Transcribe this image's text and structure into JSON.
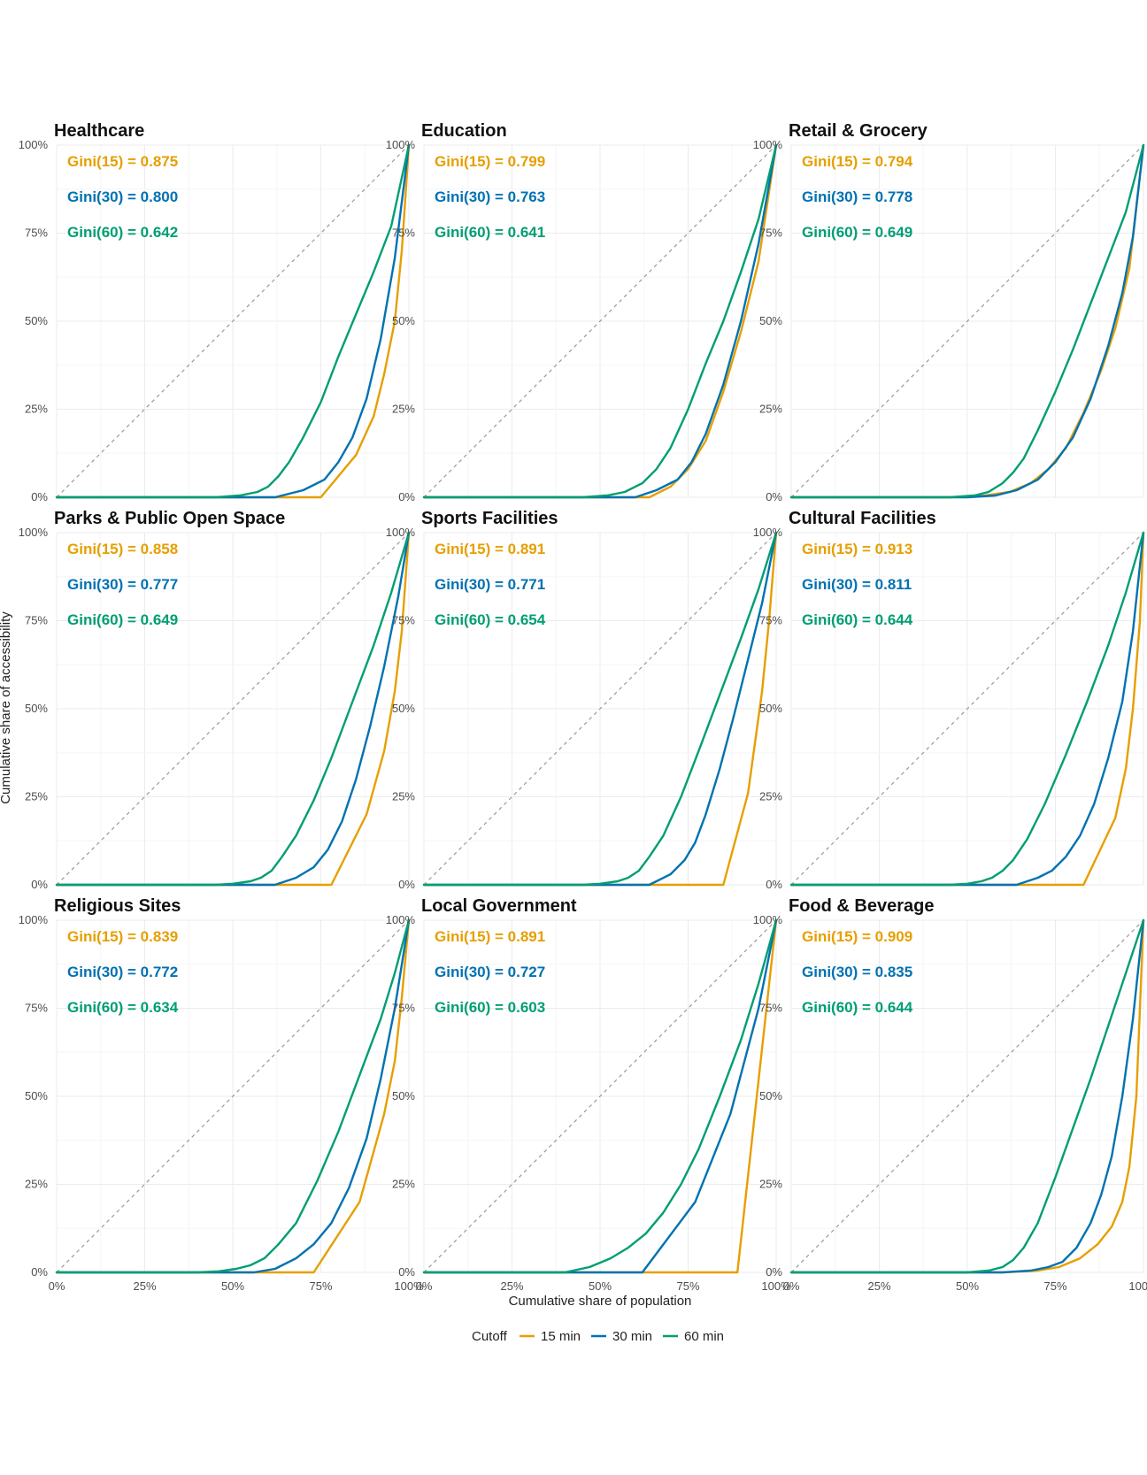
{
  "figure": {
    "xlabel": "Cumulative share of population",
    "ylabel": "Cumulative share of accessibility",
    "legend": {
      "title": "Cutoff",
      "position": "bottom",
      "items": [
        {
          "label": "15 min",
          "color": "#E69F00"
        },
        {
          "label": "30 min",
          "color": "#0072B2"
        },
        {
          "label": "60 min",
          "color": "#009E73"
        }
      ]
    },
    "x_ticks": [
      "0%",
      "25%",
      "50%",
      "75%",
      "100%"
    ],
    "y_ticks": [
      "0%",
      "25%",
      "50%",
      "75%",
      "100%"
    ]
  },
  "chart_data": [
    {
      "type": "line",
      "title": "Healthcare",
      "xlim": [
        0,
        1
      ],
      "ylim": [
        0,
        1
      ],
      "grid": true,
      "reference_line": "equality diagonal (dashed)",
      "gini": [
        "Gini(15) = 0.875",
        "Gini(30) = 0.800",
        "Gini(60) = 0.642"
      ],
      "series": [
        {
          "name": "15 min",
          "color": "#E69F00",
          "x": [
            0,
            0.5,
            0.75,
            0.85,
            0.9,
            0.93,
            0.96,
            0.98,
            1.0
          ],
          "y": [
            0,
            0,
            0,
            0.12,
            0.23,
            0.35,
            0.5,
            0.7,
            1.0
          ]
        },
        {
          "name": "30 min",
          "color": "#0072B2",
          "x": [
            0,
            0.55,
            0.62,
            0.7,
            0.76,
            0.8,
            0.84,
            0.88,
            0.92,
            0.96,
            1.0
          ],
          "y": [
            0,
            0,
            0,
            0.02,
            0.05,
            0.1,
            0.17,
            0.28,
            0.45,
            0.68,
            1.0
          ]
        },
        {
          "name": "60 min",
          "color": "#009E73",
          "x": [
            0,
            0.45,
            0.52,
            0.57,
            0.6,
            0.63,
            0.66,
            0.7,
            0.75,
            0.8,
            0.85,
            0.9,
            0.95,
            1.0
          ],
          "y": [
            0,
            0,
            0.005,
            0.015,
            0.03,
            0.06,
            0.1,
            0.17,
            0.27,
            0.4,
            0.52,
            0.64,
            0.77,
            1.0
          ]
        }
      ]
    },
    {
      "type": "line",
      "title": "Education",
      "xlim": [
        0,
        1
      ],
      "ylim": [
        0,
        1
      ],
      "grid": true,
      "reference_line": "equality diagonal (dashed)",
      "gini": [
        "Gini(15) = 0.799",
        "Gini(30) = 0.763",
        "Gini(60) = 0.641"
      ],
      "series": [
        {
          "name": "15 min",
          "color": "#E69F00",
          "x": [
            0,
            0.5,
            0.64,
            0.7,
            0.75,
            0.8,
            0.85,
            0.9,
            0.95,
            1.0
          ],
          "y": [
            0,
            0,
            0,
            0.03,
            0.08,
            0.16,
            0.3,
            0.47,
            0.67,
            1.0
          ]
        },
        {
          "name": "30 min",
          "color": "#0072B2",
          "x": [
            0,
            0.5,
            0.6,
            0.66,
            0.72,
            0.76,
            0.8,
            0.85,
            0.9,
            0.95,
            1.0
          ],
          "y": [
            0,
            0,
            0,
            0.02,
            0.05,
            0.1,
            0.18,
            0.32,
            0.5,
            0.72,
            1.0
          ]
        },
        {
          "name": "60 min",
          "color": "#009E73",
          "x": [
            0,
            0.45,
            0.52,
            0.57,
            0.62,
            0.66,
            0.7,
            0.75,
            0.8,
            0.85,
            0.9,
            0.95,
            1.0
          ],
          "y": [
            0,
            0,
            0.005,
            0.015,
            0.04,
            0.08,
            0.14,
            0.25,
            0.38,
            0.5,
            0.64,
            0.79,
            1.0
          ]
        }
      ]
    },
    {
      "type": "line",
      "title": "Retail & Grocery",
      "xlim": [
        0,
        1
      ],
      "ylim": [
        0,
        1
      ],
      "grid": true,
      "reference_line": "equality diagonal (dashed)",
      "gini": [
        "Gini(15) = 0.794",
        "Gini(30) = 0.778",
        "Gini(60) = 0.649"
      ],
      "series": [
        {
          "name": "15 min",
          "color": "#E69F00",
          "x": [
            0,
            0.45,
            0.55,
            0.62,
            0.68,
            0.73,
            0.78,
            0.83,
            0.88,
            0.92,
            0.96,
            1.0
          ],
          "y": [
            0,
            0,
            0.005,
            0.015,
            0.04,
            0.08,
            0.14,
            0.24,
            0.36,
            0.48,
            0.65,
            1.0
          ]
        },
        {
          "name": "30 min",
          "color": "#0072B2",
          "x": [
            0,
            0.5,
            0.58,
            0.64,
            0.7,
            0.75,
            0.8,
            0.85,
            0.9,
            0.94,
            0.97,
            1.0
          ],
          "y": [
            0,
            0,
            0.005,
            0.02,
            0.05,
            0.1,
            0.17,
            0.28,
            0.43,
            0.58,
            0.74,
            1.0
          ]
        },
        {
          "name": "60 min",
          "color": "#009E73",
          "x": [
            0,
            0.45,
            0.52,
            0.56,
            0.6,
            0.63,
            0.66,
            0.7,
            0.75,
            0.8,
            0.85,
            0.9,
            0.95,
            1.0
          ],
          "y": [
            0,
            0,
            0.005,
            0.015,
            0.04,
            0.07,
            0.11,
            0.19,
            0.3,
            0.42,
            0.55,
            0.68,
            0.81,
            1.0
          ]
        }
      ]
    },
    {
      "type": "line",
      "title": "Parks & Public Open Space",
      "xlim": [
        0,
        1
      ],
      "ylim": [
        0,
        1
      ],
      "grid": true,
      "reference_line": "equality diagonal (dashed)",
      "gini": [
        "Gini(15) = 0.858",
        "Gini(30) = 0.777",
        "Gini(60) = 0.649"
      ],
      "series": [
        {
          "name": "15 min",
          "color": "#E69F00",
          "x": [
            0,
            0.5,
            0.78,
            0.88,
            0.93,
            0.96,
            0.98,
            1.0
          ],
          "y": [
            0,
            0,
            0,
            0.2,
            0.38,
            0.55,
            0.72,
            1.0
          ]
        },
        {
          "name": "30 min",
          "color": "#0072B2",
          "x": [
            0,
            0.5,
            0.62,
            0.68,
            0.73,
            0.77,
            0.81,
            0.85,
            0.89,
            0.93,
            0.97,
            1.0
          ],
          "y": [
            0,
            0,
            0,
            0.02,
            0.05,
            0.1,
            0.18,
            0.3,
            0.45,
            0.62,
            0.82,
            1.0
          ]
        },
        {
          "name": "60 min",
          "color": "#009E73",
          "x": [
            0,
            0.45,
            0.5,
            0.55,
            0.58,
            0.61,
            0.64,
            0.68,
            0.73,
            0.78,
            0.84,
            0.9,
            0.95,
            1.0
          ],
          "y": [
            0,
            0,
            0.003,
            0.01,
            0.02,
            0.04,
            0.08,
            0.14,
            0.24,
            0.36,
            0.52,
            0.68,
            0.83,
            1.0
          ]
        }
      ]
    },
    {
      "type": "line",
      "title": "Sports Facilities",
      "xlim": [
        0,
        1
      ],
      "ylim": [
        0,
        1
      ],
      "grid": true,
      "reference_line": "equality diagonal (dashed)",
      "gini": [
        "Gini(15) = 0.891",
        "Gini(30) = 0.771",
        "Gini(60) = 0.654"
      ],
      "series": [
        {
          "name": "15 min",
          "color": "#E69F00",
          "x": [
            0,
            0.5,
            0.85,
            0.92,
            0.96,
            0.98,
            1.0
          ],
          "y": [
            0,
            0,
            0,
            0.26,
            0.55,
            0.75,
            1.0
          ]
        },
        {
          "name": "30 min",
          "color": "#0072B2",
          "x": [
            0,
            0.5,
            0.64,
            0.7,
            0.74,
            0.77,
            0.8,
            0.84,
            0.88,
            0.92,
            0.96,
            1.0
          ],
          "y": [
            0,
            0,
            0,
            0.03,
            0.07,
            0.12,
            0.2,
            0.33,
            0.48,
            0.64,
            0.8,
            1.0
          ]
        },
        {
          "name": "60 min",
          "color": "#009E73",
          "x": [
            0,
            0.45,
            0.5,
            0.55,
            0.58,
            0.61,
            0.64,
            0.68,
            0.73,
            0.78,
            0.84,
            0.9,
            0.95,
            1.0
          ],
          "y": [
            0,
            0,
            0.003,
            0.01,
            0.02,
            0.04,
            0.08,
            0.14,
            0.25,
            0.38,
            0.54,
            0.7,
            0.84,
            1.0
          ]
        }
      ]
    },
    {
      "type": "line",
      "title": "Cultural Facilities",
      "xlim": [
        0,
        1
      ],
      "ylim": [
        0,
        1
      ],
      "grid": true,
      "reference_line": "equality diagonal (dashed)",
      "gini": [
        "Gini(15) = 0.913",
        "Gini(30) = 0.811",
        "Gini(60) = 0.644"
      ],
      "series": [
        {
          "name": "15 min",
          "color": "#E69F00",
          "x": [
            0,
            0.5,
            0.83,
            0.92,
            0.95,
            0.97,
            0.99,
            1.0
          ],
          "y": [
            0,
            0,
            0,
            0.19,
            0.33,
            0.5,
            0.75,
            1.0
          ]
        },
        {
          "name": "30 min",
          "color": "#0072B2",
          "x": [
            0,
            0.5,
            0.64,
            0.7,
            0.74,
            0.78,
            0.82,
            0.86,
            0.9,
            0.94,
            0.97,
            1.0
          ],
          "y": [
            0,
            0,
            0,
            0.02,
            0.04,
            0.08,
            0.14,
            0.23,
            0.36,
            0.52,
            0.72,
            1.0
          ]
        },
        {
          "name": "60 min",
          "color": "#009E73",
          "x": [
            0,
            0.45,
            0.5,
            0.54,
            0.57,
            0.6,
            0.63,
            0.67,
            0.72,
            0.78,
            0.84,
            0.9,
            0.95,
            1.0
          ],
          "y": [
            0,
            0,
            0.003,
            0.01,
            0.02,
            0.04,
            0.07,
            0.13,
            0.23,
            0.37,
            0.52,
            0.68,
            0.83,
            1.0
          ]
        }
      ]
    },
    {
      "type": "line",
      "title": "Religious Sites",
      "xlim": [
        0,
        1
      ],
      "ylim": [
        0,
        1
      ],
      "grid": true,
      "reference_line": "equality diagonal (dashed)",
      "gini": [
        "Gini(15) = 0.839",
        "Gini(30) = 0.772",
        "Gini(60) = 0.634"
      ],
      "series": [
        {
          "name": "15 min",
          "color": "#E69F00",
          "x": [
            0,
            0.5,
            0.73,
            0.86,
            0.93,
            0.96,
            0.98,
            1.0
          ],
          "y": [
            0,
            0,
            0,
            0.2,
            0.45,
            0.6,
            0.78,
            1.0
          ]
        },
        {
          "name": "30 min",
          "color": "#0072B2",
          "x": [
            0,
            0.5,
            0.56,
            0.62,
            0.68,
            0.73,
            0.78,
            0.83,
            0.88,
            0.92,
            0.96,
            1.0
          ],
          "y": [
            0,
            0,
            0,
            0.01,
            0.04,
            0.08,
            0.14,
            0.24,
            0.38,
            0.55,
            0.75,
            1.0
          ]
        },
        {
          "name": "60 min",
          "color": "#009E73",
          "x": [
            0,
            0.4,
            0.46,
            0.51,
            0.55,
            0.59,
            0.63,
            0.68,
            0.74,
            0.8,
            0.86,
            0.92,
            0.96,
            1.0
          ],
          "y": [
            0,
            0,
            0.003,
            0.01,
            0.02,
            0.04,
            0.08,
            0.14,
            0.26,
            0.4,
            0.56,
            0.72,
            0.85,
            1.0
          ]
        }
      ]
    },
    {
      "type": "line",
      "title": "Local Government",
      "xlim": [
        0,
        1
      ],
      "ylim": [
        0,
        1
      ],
      "grid": true,
      "reference_line": "equality diagonal (dashed)",
      "gini": [
        "Gini(15) = 0.891",
        "Gini(30) = 0.727",
        "Gini(60) = 0.603"
      ],
      "series": [
        {
          "name": "15 min",
          "color": "#E69F00",
          "x": [
            0,
            0.5,
            0.89,
            1.0
          ],
          "y": [
            0,
            0,
            0,
            1.0
          ]
        },
        {
          "name": "30 min",
          "color": "#0072B2",
          "x": [
            0,
            0.5,
            0.62,
            0.77,
            0.87,
            0.95,
            1.0
          ],
          "y": [
            0,
            0,
            0,
            0.2,
            0.45,
            0.75,
            1.0
          ]
        },
        {
          "name": "60 min",
          "color": "#009E73",
          "x": [
            0,
            0.4,
            0.47,
            0.53,
            0.58,
            0.63,
            0.68,
            0.73,
            0.78,
            0.84,
            0.9,
            0.95,
            1.0
          ],
          "y": [
            0,
            0,
            0.015,
            0.04,
            0.07,
            0.11,
            0.17,
            0.25,
            0.35,
            0.5,
            0.66,
            0.82,
            1.0
          ]
        }
      ]
    },
    {
      "type": "line",
      "title": "Food & Beverage",
      "xlim": [
        0,
        1
      ],
      "ylim": [
        0,
        1
      ],
      "grid": true,
      "reference_line": "equality diagonal (dashed)",
      "gini": [
        "Gini(15) = 0.909",
        "Gini(30) = 0.835",
        "Gini(60) = 0.644"
      ],
      "series": [
        {
          "name": "15 min",
          "color": "#E69F00",
          "x": [
            0,
            0.6,
            0.7,
            0.76,
            0.82,
            0.87,
            0.91,
            0.94,
            0.96,
            0.98,
            1.0
          ],
          "y": [
            0,
            0,
            0.005,
            0.015,
            0.04,
            0.08,
            0.13,
            0.2,
            0.3,
            0.5,
            1.0
          ]
        },
        {
          "name": "30 min",
          "color": "#0072B2",
          "x": [
            0,
            0.6,
            0.68,
            0.73,
            0.77,
            0.81,
            0.85,
            0.88,
            0.91,
            0.94,
            0.97,
            1.0
          ],
          "y": [
            0,
            0,
            0.005,
            0.015,
            0.03,
            0.07,
            0.14,
            0.22,
            0.33,
            0.5,
            0.72,
            1.0
          ]
        },
        {
          "name": "60 min",
          "color": "#009E73",
          "x": [
            0,
            0.5,
            0.56,
            0.6,
            0.63,
            0.66,
            0.7,
            0.75,
            0.8,
            0.85,
            0.9,
            0.95,
            1.0
          ],
          "y": [
            0,
            0,
            0.005,
            0.015,
            0.035,
            0.07,
            0.14,
            0.27,
            0.41,
            0.55,
            0.7,
            0.85,
            1.0
          ]
        }
      ]
    }
  ]
}
